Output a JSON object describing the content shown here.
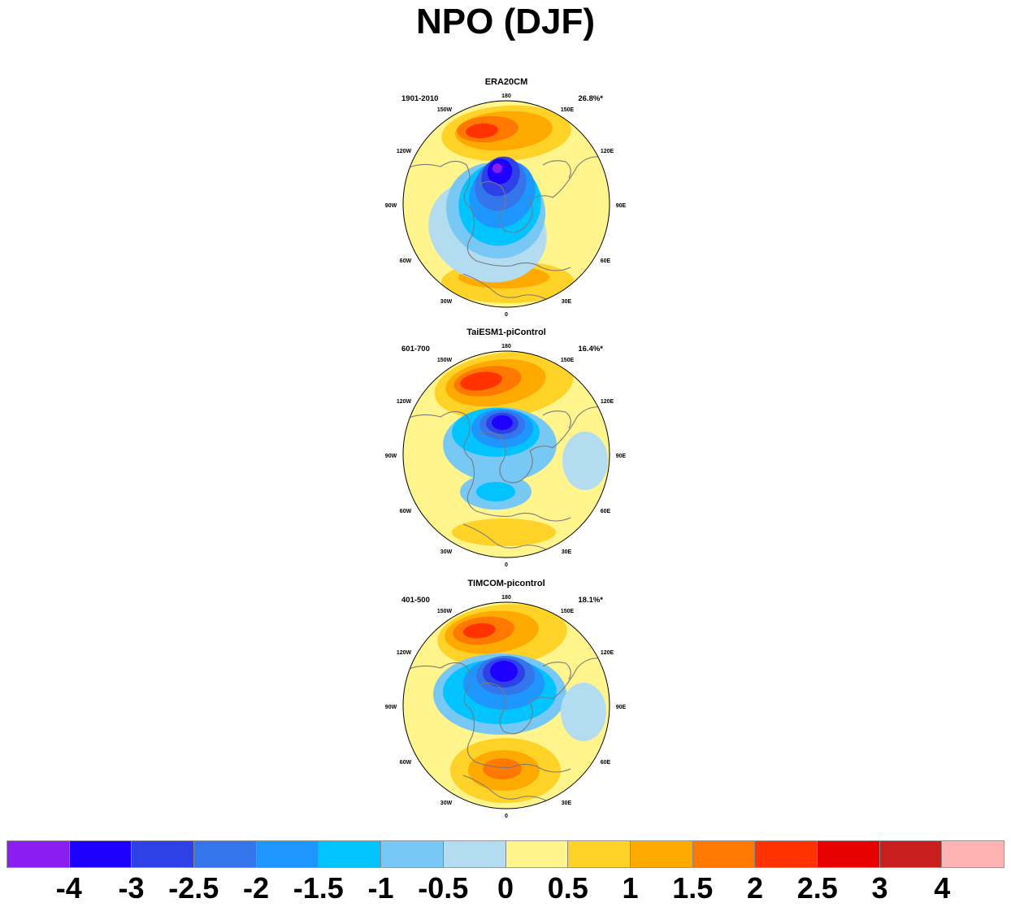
{
  "title": "NPO (DJF)",
  "panels": [
    {
      "name": "ERA20CM",
      "period": "1901-2010",
      "variance": "26.8%*"
    },
    {
      "name": "TaiESM1-piControl",
      "period": "601-700",
      "variance": "16.4%*"
    },
    {
      "name": "TIMCOM-picontrol",
      "period": "401-500",
      "variance": "18.1%*"
    }
  ],
  "longitude_labels": {
    "top": "180",
    "bottom": "0",
    "150W": "150W",
    "150E": "150E",
    "120W": "120W",
    "120E": "120E",
    "90W": "90W",
    "90E": "90E",
    "60W": "60W",
    "60E": "60E",
    "30W": "30W",
    "30E": "30E"
  },
  "colorbar": {
    "colors": [
      "#8a1ef0",
      "#1e00ff",
      "#2d41e6",
      "#3575eb",
      "#1e96ff",
      "#00c3ff",
      "#78c8f5",
      "#b4dcf0",
      "#fff58c",
      "#ffd228",
      "#ffaa00",
      "#ff7800",
      "#ff3200",
      "#e60000",
      "#c81e1e",
      "#ffb4b4"
    ],
    "labels": [
      "-4",
      "-3",
      "-2.5",
      "-2",
      "-1.5",
      "-1",
      "-0.5",
      "0",
      "0.5",
      "1",
      "1.5",
      "2",
      "2.5",
      "3",
      "4"
    ]
  }
}
